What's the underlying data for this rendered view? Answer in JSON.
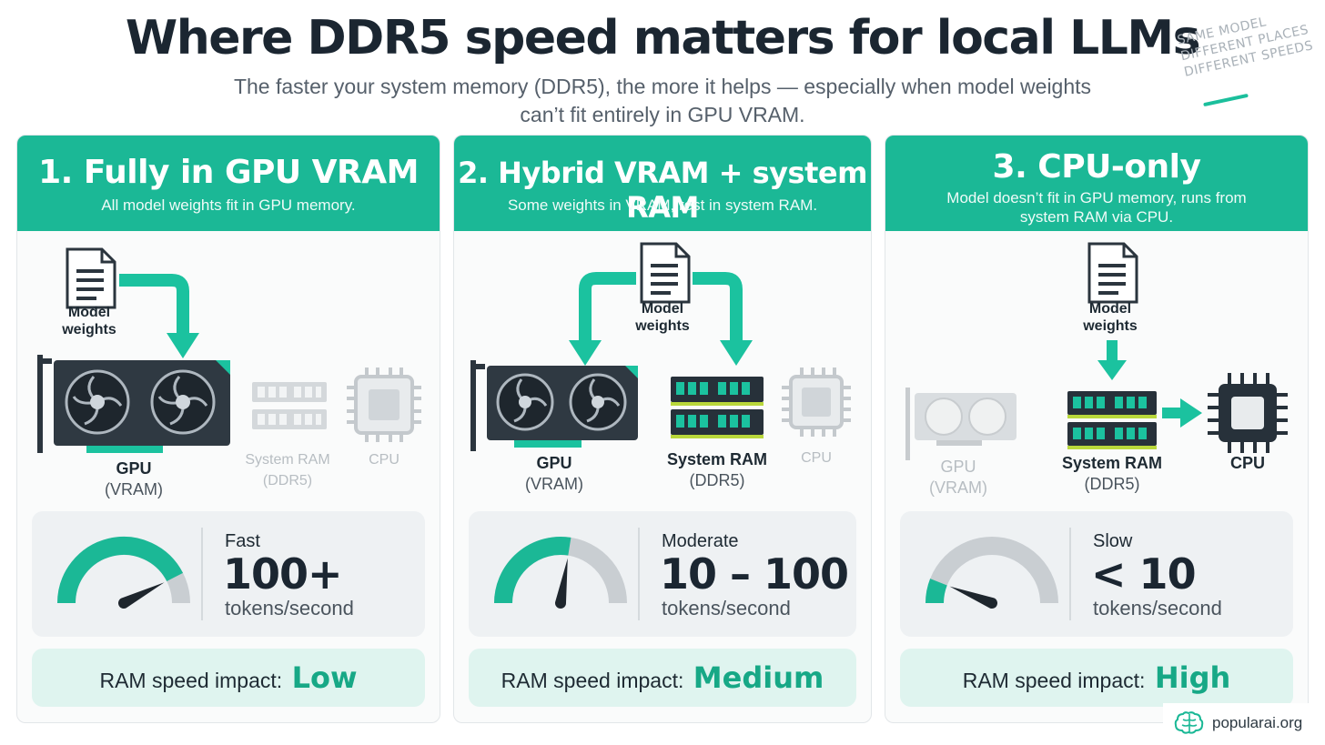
{
  "header": {
    "title": "Where DDR5 speed matters for local LLMs",
    "subtitle_line1": "The faster your system memory (DDR5), the more it helps — especially when model weights",
    "subtitle_line2": "can’t fit entirely in GPU VRAM."
  },
  "side_note": {
    "line1": "SAME MODEL",
    "line2": "DIFFERENT PLACES",
    "line3": "DIFFERENT SPEEDS"
  },
  "panels": [
    {
      "title": "1. Fully in GPU VRAM",
      "subtitle": "All model weights fit in GPU memory.",
      "weights_label_1": "Model",
      "weights_label_2": "weights",
      "gpu_label": "GPU",
      "gpu_sub": "(VRAM)",
      "ram_label": "System RAM",
      "ram_sub": "(DDR5)",
      "cpu_label": "CPU",
      "speed_label": "Fast",
      "speed_value": "100+",
      "speed_unit": "tokens/second",
      "gauge_level": 0.85,
      "impact_label": "RAM speed impact:",
      "impact_level": "Low"
    },
    {
      "title": "2. Hybrid VRAM + system RAM",
      "subtitle": "Some weights in VRAM, rest in system RAM.",
      "weights_label_1": "Model",
      "weights_label_2": "weights",
      "gpu_label": "GPU",
      "gpu_sub": "(VRAM)",
      "ram_label": "System RAM",
      "ram_sub": "(DDR5)",
      "cpu_label": "CPU",
      "speed_label": "Moderate",
      "speed_value": "10 – 100",
      "speed_unit": "tokens/second",
      "gauge_level": 0.55,
      "impact_label": "RAM speed impact:",
      "impact_level": "Medium"
    },
    {
      "title": "3. CPU-only",
      "subtitle_line1": "Model doesn’t fit in GPU memory, runs from",
      "subtitle_line2": "system RAM via CPU.",
      "weights_label_1": "Model",
      "weights_label_2": "weights",
      "gpu_label": "GPU",
      "gpu_sub": "(VRAM)",
      "ram_label": "System RAM",
      "ram_sub": "(DDR5)",
      "cpu_label": "CPU",
      "speed_label": "Slow",
      "speed_value": "< 10",
      "speed_unit": "tokens/second",
      "gauge_level": 0.12,
      "impact_label": "RAM speed impact:",
      "impact_level": "High"
    }
  ],
  "brand": {
    "name": "popularai.org"
  },
  "colors": {
    "accent": "#1bb896",
    "accent_dark": "#17a886",
    "dim": "#c4c9cd",
    "dark": "#2b353e"
  },
  "icons": [
    "document-icon",
    "gpu-icon",
    "ram-icon",
    "cpu-icon",
    "gauge-icon",
    "arrow-icon",
    "brain-icon"
  ]
}
